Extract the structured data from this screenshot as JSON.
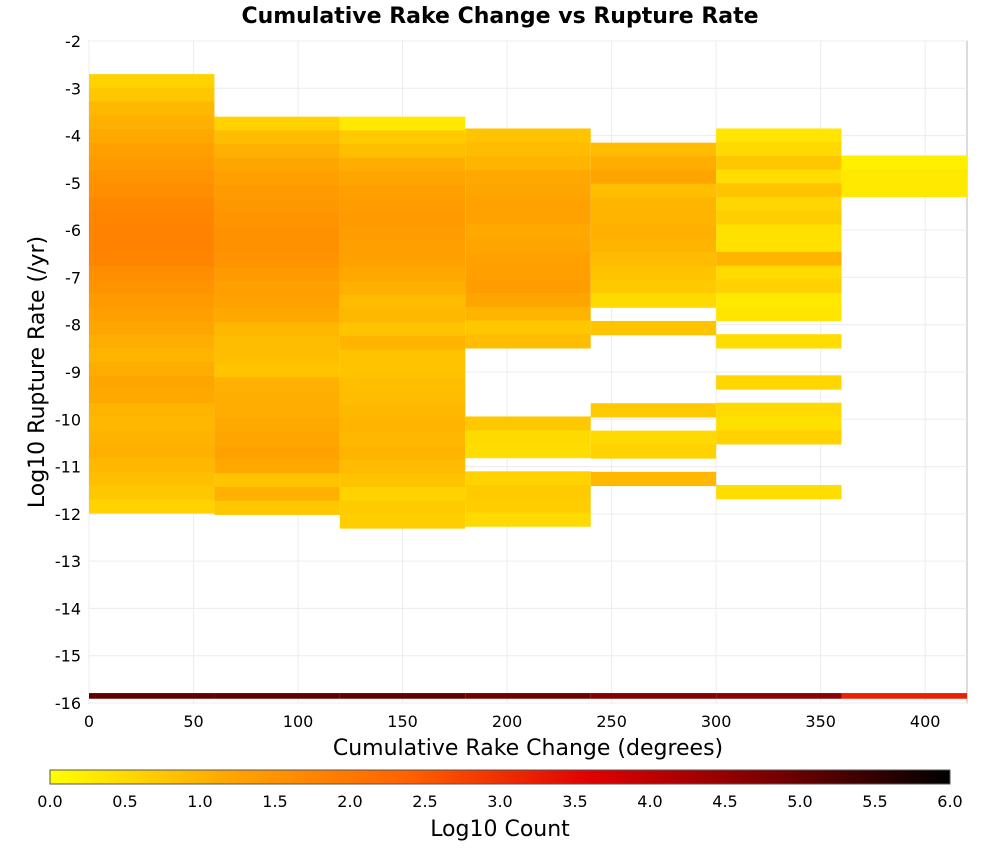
{
  "chart_data": {
    "type": "heatmap",
    "title": "Cumulative Rake Change vs Rupture Rate",
    "xlabel": "Cumulative Rake Change (degrees)",
    "ylabel": "Log10 Rupture Rate (/yr)",
    "xlim": [
      0,
      420
    ],
    "ylim": [
      -16,
      -2
    ],
    "xticks": [
      "0",
      "50",
      "100",
      "150",
      "200",
      "250",
      "300",
      "350",
      "400"
    ],
    "yticks": [
      "-2",
      "-3",
      "-4",
      "-5",
      "-6",
      "-7",
      "-8",
      "-9",
      "-10",
      "-11",
      "-12",
      "-13",
      "-14",
      "-15",
      "-16"
    ],
    "grid": true,
    "x_bin_edges": [
      0,
      60,
      120,
      180,
      240,
      300,
      360,
      420
    ],
    "y_bin_width": 0.29,
    "colorbar": {
      "label": "Log10 Count",
      "range": [
        0,
        6
      ],
      "ticks": [
        "0.0",
        "0.5",
        "1.0",
        "1.5",
        "2.0",
        "2.5",
        "3.0",
        "3.5",
        "4.0",
        "4.5",
        "5.0",
        "5.5",
        "6.0"
      ],
      "colors": [
        "#ffff00",
        "#ffa500",
        "#ff6000",
        "#e00000",
        "#7a0000",
        "#000000"
      ]
    },
    "bottom_row": {
      "y": -15.85,
      "values": [
        5.05,
        5.05,
        5.05,
        4.9,
        4.7,
        4.6,
        3.2
      ]
    },
    "columns": [
      {
        "x_start": 0,
        "x_end": 60,
        "y_top": -2.7,
        "values": [
          0.6,
          0.75,
          0.95,
          1.05,
          1.15,
          1.3,
          1.4,
          1.5,
          1.6,
          1.7,
          1.75,
          1.8,
          1.8,
          1.75,
          1.6,
          1.5,
          1.4,
          1.3,
          1.2,
          1.1,
          1.0,
          1.1,
          1.2,
          1.15,
          1.0,
          0.95,
          1.0,
          1.05,
          0.95,
          0.85,
          0.75,
          0.6
        ]
      },
      {
        "x_start": 60,
        "x_end": 120,
        "y_top": -3.6,
        "values": [
          0.6,
          0.9,
          1.05,
          1.2,
          1.3,
          1.4,
          1.45,
          1.5,
          1.55,
          1.55,
          1.5,
          1.4,
          1.3,
          1.25,
          1.15,
          0.95,
          0.9,
          0.85,
          0.8,
          1.05,
          1.1,
          1.1,
          1.15,
          1.2,
          1.25,
          1.15,
          0.8,
          1.05,
          0.75
        ]
      },
      {
        "x_start": 120,
        "x_end": 180,
        "y_top": -3.6,
        "values": [
          0.3,
          0.7,
          0.85,
          1.1,
          1.2,
          1.3,
          1.35,
          1.4,
          1.35,
          1.3,
          1.25,
          1.15,
          1.05,
          0.9,
          0.95,
          0.8,
          1.0,
          0.8,
          0.8,
          0.85,
          0.9,
          0.95,
          1.0,
          0.95,
          1.0,
          0.9,
          0.8,
          0.6,
          0.7,
          0.65
        ]
      },
      {
        "x_start": 180,
        "x_end": 240,
        "y_top": -3.85,
        "values": [
          0.8,
          0.9,
          1.0,
          1.15,
          1.2,
          1.25,
          1.25,
          1.15,
          1.2,
          1.25,
          1.3,
          1.35,
          1.2,
          1.0,
          0.75,
          0.9,
          null,
          null,
          null,
          null,
          null,
          0.75,
          0.5,
          0.45,
          null,
          0.6,
          0.7,
          0.65,
          0.5
        ]
      },
      {
        "x_start": 240,
        "x_end": 300,
        "y_top": -4.15,
        "values": [
          0.9,
          1.1,
          1.2,
          0.85,
          1.0,
          1.0,
          1.05,
          1.0,
          0.9,
          0.8,
          0.7,
          0.5,
          null,
          0.8,
          null,
          null,
          null,
          null,
          null,
          0.7,
          null,
          0.5,
          0.6,
          null,
          0.95
        ]
      },
      {
        "x_start": 300,
        "x_end": 360,
        "y_top": -3.85,
        "values": [
          0.35,
          0.5,
          0.75,
          0.45,
          0.8,
          0.55,
          0.65,
          0.4,
          0.4,
          1.0,
          0.5,
          0.6,
          0.3,
          0.35,
          null,
          0.45,
          null,
          null,
          0.55,
          null,
          0.5,
          0.4,
          0.6,
          null,
          null,
          null,
          0.45
        ]
      },
      {
        "x_start": 360,
        "x_end": 420,
        "y_top": -4.42,
        "values": [
          0.2,
          0.3,
          0.3
        ]
      }
    ]
  }
}
